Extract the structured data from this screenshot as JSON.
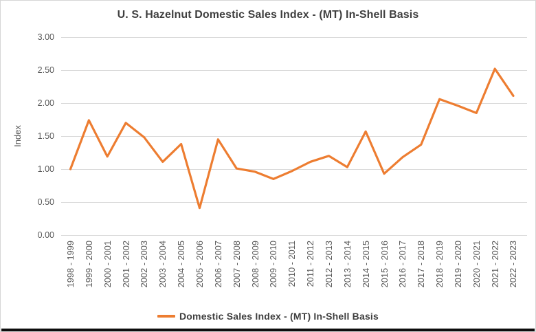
{
  "chart_data": {
    "type": "line",
    "title": "U. S. Hazelnut Domestic Sales Index - (MT) In-Shell Basis",
    "ylabel": "Index",
    "xlabel": "",
    "ylim": [
      0,
      3
    ],
    "y_tick_labels": [
      "3.00",
      "2.50",
      "2.00",
      "1.50",
      "1.00",
      "0.50",
      "0.00"
    ],
    "grid": "horizontal",
    "legend_position": "bottom",
    "categories": [
      "1998 - 1999",
      "1999 - 2000",
      "2000 - 2001",
      "2001 - 2002",
      "2002 - 2003",
      "2003 - 2004",
      "2004 - 2005",
      "2005 - 2006",
      "2006 - 2007",
      "2007 - 2008",
      "2008 - 2009",
      "2009 - 2010",
      "2010 - 2011",
      "2011 - 2012",
      "2012 - 2013",
      "2013 - 2014",
      "2014 - 2015",
      "2015 - 2016",
      "2016 - 2017",
      "2017 - 2018",
      "2018 - 2019",
      "2019 - 2020",
      "2020 - 2021",
      "2021 - 2022",
      "2022 - 2023"
    ],
    "series": [
      {
        "name": "Domestic Sales Index - (MT) In-Shell Basis",
        "values": [
          1.0,
          1.74,
          1.19,
          1.7,
          1.48,
          1.11,
          1.38,
          0.41,
          1.45,
          1.01,
          0.96,
          0.85,
          0.97,
          1.11,
          1.2,
          1.03,
          1.57,
          0.93,
          1.18,
          1.37,
          2.06,
          1.96,
          1.85,
          2.52,
          2.11
        ]
      }
    ],
    "colors": {
      "line": "#ED7D31",
      "grid": "#D9D9D9",
      "axis_text": "#595959",
      "title_text": "#3F3F3F"
    }
  }
}
